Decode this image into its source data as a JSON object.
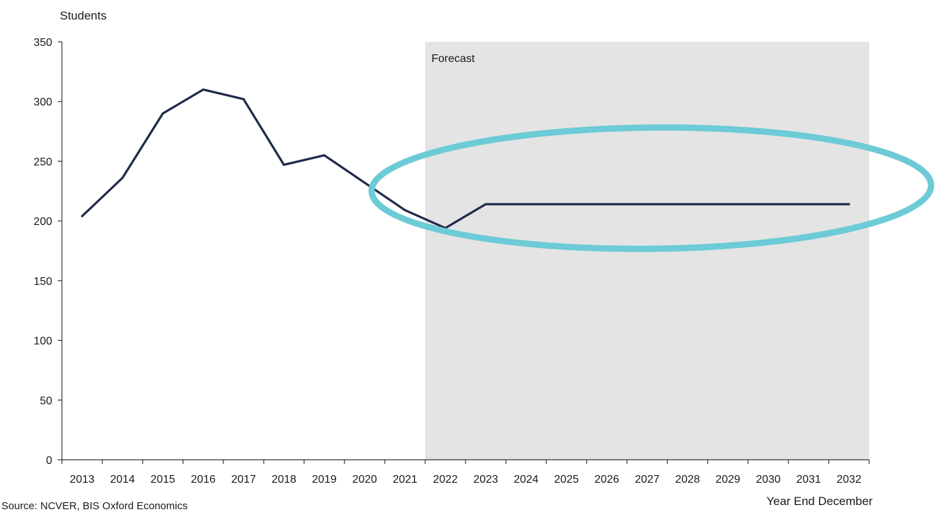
{
  "chart_data": {
    "type": "line",
    "ylabel": "Students",
    "xlabel": "Year End December",
    "source": "Source: NCVER, BIS Oxford Economics",
    "forecast_label": "Forecast",
    "categories": [
      "2013",
      "2014",
      "2015",
      "2016",
      "2017",
      "2018",
      "2019",
      "2020",
      "2021",
      "2022",
      "2023",
      "2024",
      "2025",
      "2026",
      "2027",
      "2028",
      "2029",
      "2030",
      "2031",
      "2032"
    ],
    "yticks": [
      0,
      50,
      100,
      150,
      200,
      250,
      300,
      350
    ],
    "ylim": [
      0,
      350
    ],
    "grid": false,
    "forecast_start": "2022",
    "forecast_end": "2032",
    "series": [
      {
        "values": [
          204,
          236,
          290,
          310,
          302,
          247,
          255,
          232,
          209,
          194,
          214,
          214,
          214,
          214,
          214,
          214,
          214,
          214,
          214,
          214
        ]
      }
    ],
    "annotations": [
      {
        "type": "ellipse",
        "description": "highlight",
        "x_from": "2022",
        "x_to": "2032",
        "y_center": 214
      }
    ],
    "colors": {
      "line": "#1f2a4a",
      "forecast_shade": "#e4e4e4",
      "highlight": "#6ccbd6",
      "axis": "#333333"
    }
  }
}
